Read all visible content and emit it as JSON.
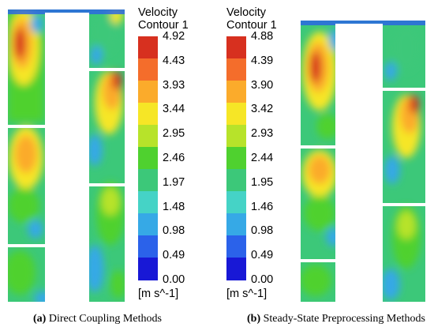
{
  "panels": [
    {
      "id": "a",
      "title_line1": "Velocity",
      "title_line2": "Contour 1",
      "levels": [
        "4.92",
        "4.43",
        "3.93",
        "3.44",
        "2.95",
        "2.46",
        "1.97",
        "1.48",
        "0.98",
        "0.49",
        "0.00"
      ],
      "unit": "[m s^-1]",
      "caption_letter": "(a)",
      "caption_text": "Direct Coupling Methods"
    },
    {
      "id": "b",
      "title_line1": "Velocity",
      "title_line2": "Contour 1",
      "levels": [
        "4.88",
        "4.39",
        "3.90",
        "3.42",
        "2.93",
        "2.44",
        "1.95",
        "1.46",
        "0.98",
        "0.49",
        "0.00"
      ],
      "unit": "[m s^-1]",
      "caption_letter": "(b)",
      "caption_text": "Steady-State Preprocessing Methods"
    }
  ],
  "colors": {
    "scale_top_to_bottom": [
      "#d7301f",
      "#f46d2b",
      "#fbab2b",
      "#f6e626",
      "#b7e32a",
      "#4fd12f",
      "#3cc879",
      "#45d3c6",
      "#36a9e6",
      "#2b62ea",
      "#1818d6"
    ],
    "background": "#ffffff"
  }
}
